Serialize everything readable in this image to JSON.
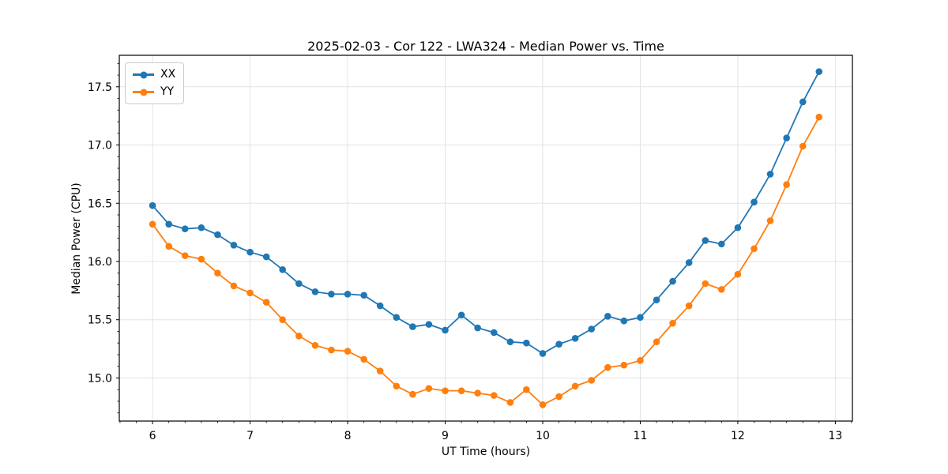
{
  "figure": {
    "background": "#ffffff",
    "text_color": "#000000"
  },
  "chart_data": {
    "type": "line",
    "title": "2025-02-03 - Cor 122 - LWA324 - Median Power vs. Time",
    "xlabel": "UT Time (hours)",
    "ylabel": "Median Power (CPU)",
    "xlim": [
      5.659,
      13.175
    ],
    "ylim": [
      14.63,
      17.77
    ],
    "grid": true,
    "grid_color": "#e3e3e3",
    "spine_color": "#000000",
    "legend_position": "upper-left",
    "xticks": {
      "values": [
        6,
        7,
        8,
        9,
        10,
        11,
        12,
        13
      ],
      "labels": [
        "6",
        "7",
        "8",
        "9",
        "10",
        "11",
        "12",
        "13"
      ]
    },
    "yticks": {
      "values": [
        15.0,
        15.5,
        16.0,
        16.5,
        17.0,
        17.5
      ],
      "labels": [
        "15.0",
        "15.5",
        "16.0",
        "16.5",
        "17.0",
        "17.5"
      ]
    },
    "minor_x_per_hour": 6,
    "minor_y_step": 0.1,
    "x": [
      6.0,
      6.167,
      6.333,
      6.5,
      6.667,
      6.833,
      7.0,
      7.167,
      7.333,
      7.5,
      7.667,
      7.833,
      8.0,
      8.167,
      8.333,
      8.5,
      8.667,
      8.833,
      9.0,
      9.167,
      9.333,
      9.5,
      9.667,
      9.833,
      10.0,
      10.167,
      10.333,
      10.5,
      10.667,
      10.833,
      11.0,
      11.167,
      11.333,
      11.5,
      11.667,
      11.833,
      12.0,
      12.167,
      12.333,
      12.5,
      12.667,
      12.833
    ],
    "series": [
      {
        "name": "XX",
        "color": "#1f77b4",
        "values": [
          16.48,
          16.32,
          16.28,
          16.29,
          16.23,
          16.14,
          16.08,
          16.04,
          15.93,
          15.81,
          15.74,
          15.72,
          15.72,
          15.71,
          15.62,
          15.52,
          15.44,
          15.46,
          15.41,
          15.54,
          15.43,
          15.39,
          15.31,
          15.3,
          15.21,
          15.29,
          15.34,
          15.42,
          15.53,
          15.49,
          15.52,
          15.67,
          15.83,
          15.99,
          16.18,
          16.15,
          16.29,
          16.51,
          16.75,
          17.06,
          17.37,
          17.63
        ]
      },
      {
        "name": "YY",
        "color": "#ff7f0e",
        "values": [
          16.32,
          16.13,
          16.05,
          16.02,
          15.9,
          15.79,
          15.73,
          15.65,
          15.5,
          15.36,
          15.28,
          15.24,
          15.23,
          15.16,
          15.06,
          14.93,
          14.86,
          14.91,
          14.89,
          14.89,
          14.87,
          14.85,
          14.79,
          14.9,
          14.77,
          14.84,
          14.93,
          14.98,
          15.09,
          15.11,
          15.15,
          15.31,
          15.47,
          15.62,
          15.81,
          15.76,
          15.89,
          16.11,
          16.35,
          16.66,
          16.99,
          17.24
        ]
      }
    ]
  }
}
